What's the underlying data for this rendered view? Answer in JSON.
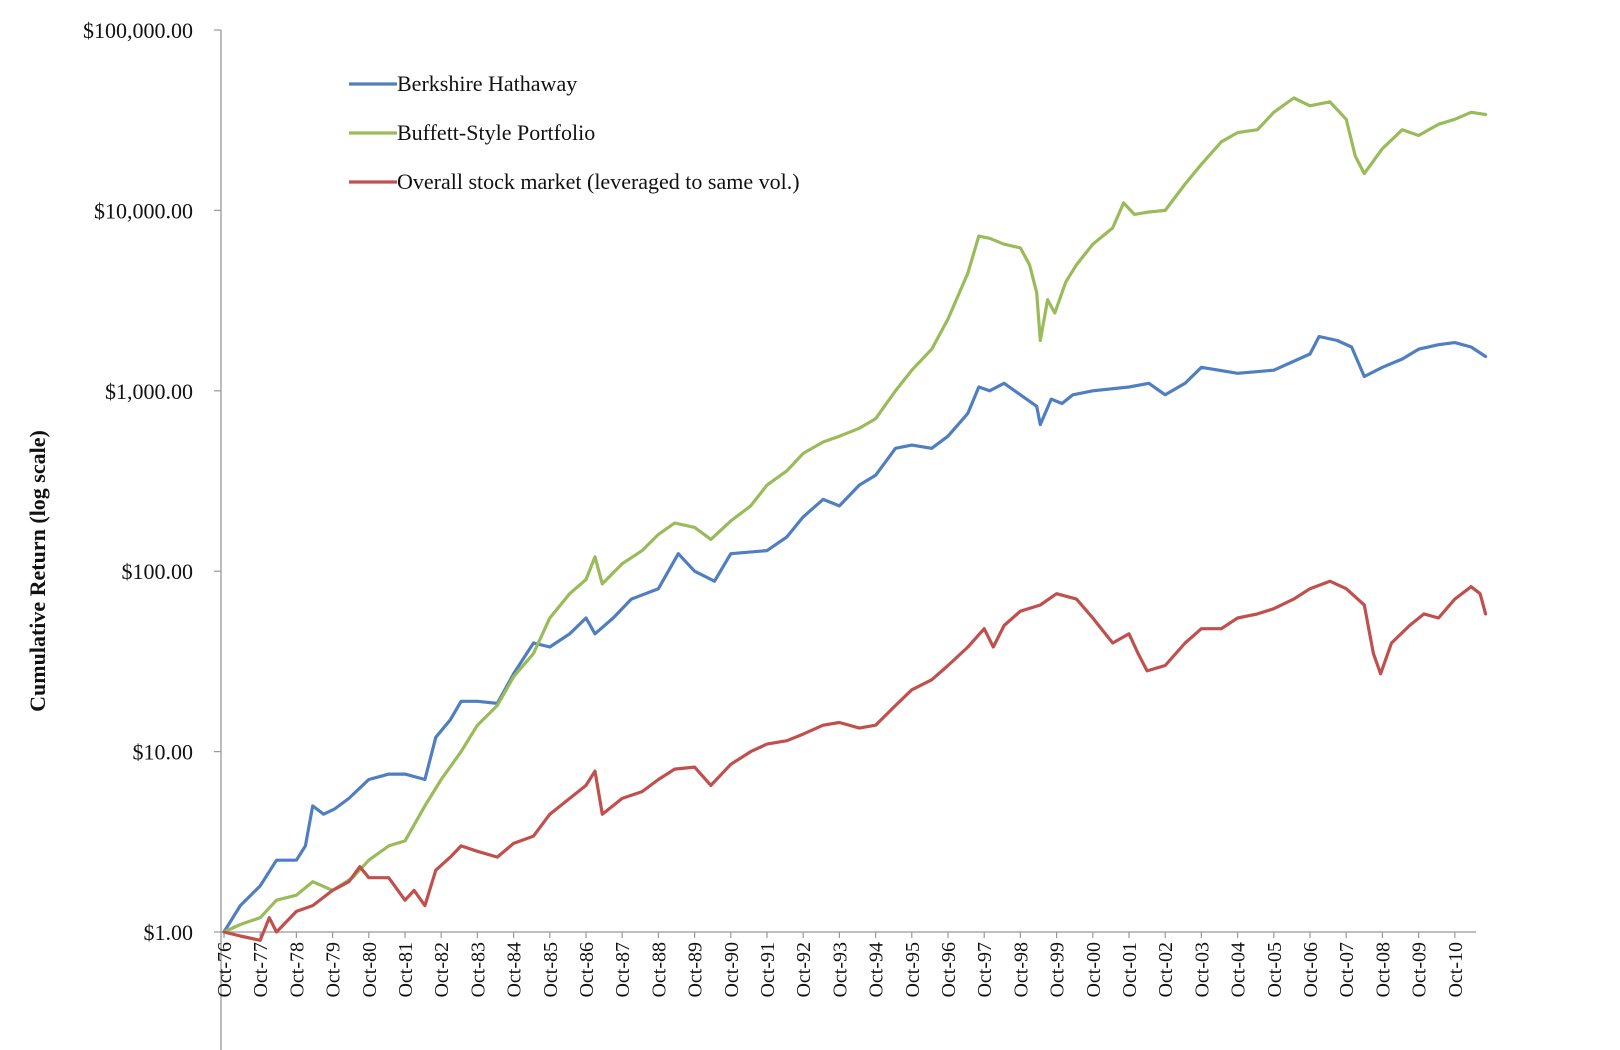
{
  "chart_data": {
    "type": "line",
    "ylabel": "Cumulative Return  (log scale)",
    "yscale": "log",
    "ylim": [
      1,
      100000
    ],
    "yticks": [
      {
        "value": 1,
        "label": "$1.00"
      },
      {
        "value": 10,
        "label": "$10.00"
      },
      {
        "value": 100,
        "label": "$100.00"
      },
      {
        "value": 1000,
        "label": "$1,000.00"
      },
      {
        "value": 10000,
        "label": "$10,000.00"
      },
      {
        "value": 100000,
        "label": "$100,000.00"
      }
    ],
    "xlim": [
      1976.75,
      2011.65
    ],
    "xticks": [
      "Oct-76",
      "Oct-77",
      "Oct-78",
      "Oct-79",
      "Oct-80",
      "Oct-81",
      "Oct-82",
      "Oct-83",
      "Oct-84",
      "Oct-85",
      "Oct-86",
      "Oct-87",
      "Oct-88",
      "Oct-89",
      "Oct-90",
      "Oct-91",
      "Oct-92",
      "Oct-93",
      "Oct-94",
      "Oct-95",
      "Oct-96",
      "Oct-97",
      "Oct-98",
      "Oct-99",
      "Oct-00",
      "Oct-01",
      "Oct-02",
      "Oct-03",
      "Oct-04",
      "Oct-05",
      "Oct-06",
      "Oct-07",
      "Oct-08",
      "Oct-09",
      "Oct-10"
    ],
    "legend_position": "top-left",
    "grid": false,
    "series": [
      {
        "name": "Berkshire Hathaway",
        "color": "#4f7fc0",
        "points": [
          [
            1976.75,
            1.0
          ],
          [
            1977.2,
            1.4
          ],
          [
            1977.75,
            1.8
          ],
          [
            1978.2,
            2.5
          ],
          [
            1978.75,
            2.5
          ],
          [
            1979.0,
            3.0
          ],
          [
            1979.2,
            5.0
          ],
          [
            1979.5,
            4.5
          ],
          [
            1979.8,
            4.8
          ],
          [
            1980.2,
            5.5
          ],
          [
            1980.75,
            7.0
          ],
          [
            1981.3,
            7.5
          ],
          [
            1981.75,
            7.5
          ],
          [
            1982.3,
            7.0
          ],
          [
            1982.6,
            12.0
          ],
          [
            1983.0,
            15.0
          ],
          [
            1983.3,
            19.0
          ],
          [
            1983.75,
            19.0
          ],
          [
            1984.3,
            18.5
          ],
          [
            1984.75,
            27.0
          ],
          [
            1985.3,
            40.0
          ],
          [
            1985.75,
            38.0
          ],
          [
            1986.3,
            45.0
          ],
          [
            1986.75,
            55.0
          ],
          [
            1987.0,
            45.0
          ],
          [
            1987.5,
            55.0
          ],
          [
            1988.0,
            70.0
          ],
          [
            1988.75,
            80.0
          ],
          [
            1989.3,
            125.0
          ],
          [
            1989.75,
            100.0
          ],
          [
            1990.3,
            88.0
          ],
          [
            1990.75,
            125.0
          ],
          [
            1991.75,
            130.0
          ],
          [
            1992.3,
            155.0
          ],
          [
            1992.75,
            200.0
          ],
          [
            1993.3,
            250.0
          ],
          [
            1993.75,
            230.0
          ],
          [
            1994.3,
            300.0
          ],
          [
            1994.75,
            340.0
          ],
          [
            1995.3,
            480.0
          ],
          [
            1995.75,
            500.0
          ],
          [
            1996.3,
            480.0
          ],
          [
            1996.75,
            560.0
          ],
          [
            1997.3,
            750.0
          ],
          [
            1997.6,
            1050.0
          ],
          [
            1997.9,
            1000.0
          ],
          [
            1998.3,
            1100.0
          ],
          [
            1998.75,
            950.0
          ],
          [
            1999.2,
            820.0
          ],
          [
            1999.3,
            650.0
          ],
          [
            1999.6,
            900.0
          ],
          [
            1999.9,
            850.0
          ],
          [
            2000.2,
            950.0
          ],
          [
            2000.75,
            1000.0
          ],
          [
            2001.75,
            1050.0
          ],
          [
            2002.3,
            1100.0
          ],
          [
            2002.75,
            950.0
          ],
          [
            2003.3,
            1100.0
          ],
          [
            2003.75,
            1350.0
          ],
          [
            2004.75,
            1250.0
          ],
          [
            2005.75,
            1300.0
          ],
          [
            2006.75,
            1600.0
          ],
          [
            2007.0,
            2000.0
          ],
          [
            2007.5,
            1900.0
          ],
          [
            2007.9,
            1750.0
          ],
          [
            2008.25,
            1200.0
          ],
          [
            2008.75,
            1350.0
          ],
          [
            2009.3,
            1500.0
          ],
          [
            2009.75,
            1700.0
          ],
          [
            2010.3,
            1800.0
          ],
          [
            2010.75,
            1850.0
          ],
          [
            2011.2,
            1750.0
          ],
          [
            2011.6,
            1550.0
          ]
        ]
      },
      {
        "name": "Buffett-Style Portfolio",
        "color": "#9abb59",
        "points": [
          [
            1976.75,
            1.0
          ],
          [
            1977.2,
            1.1
          ],
          [
            1977.75,
            1.2
          ],
          [
            1978.2,
            1.5
          ],
          [
            1978.75,
            1.6
          ],
          [
            1979.2,
            1.9
          ],
          [
            1979.75,
            1.7
          ],
          [
            1980.3,
            2.0
          ],
          [
            1980.75,
            2.5
          ],
          [
            1981.3,
            3.0
          ],
          [
            1981.75,
            3.2
          ],
          [
            1982.3,
            5.0
          ],
          [
            1982.75,
            7.0
          ],
          [
            1983.3,
            10.0
          ],
          [
            1983.75,
            14.0
          ],
          [
            1984.3,
            18.0
          ],
          [
            1984.75,
            26.0
          ],
          [
            1985.3,
            35.0
          ],
          [
            1985.75,
            55.0
          ],
          [
            1986.3,
            75.0
          ],
          [
            1986.75,
            90.0
          ],
          [
            1987.0,
            120.0
          ],
          [
            1987.2,
            85.0
          ],
          [
            1987.75,
            110.0
          ],
          [
            1988.3,
            130.0
          ],
          [
            1988.75,
            160.0
          ],
          [
            1989.2,
            185.0
          ],
          [
            1989.75,
            175.0
          ],
          [
            1990.2,
            150.0
          ],
          [
            1990.75,
            190.0
          ],
          [
            1991.3,
            230.0
          ],
          [
            1991.75,
            300.0
          ],
          [
            1992.3,
            360.0
          ],
          [
            1992.75,
            450.0
          ],
          [
            1993.3,
            520.0
          ],
          [
            1993.75,
            560.0
          ],
          [
            1994.3,
            620.0
          ],
          [
            1994.75,
            700.0
          ],
          [
            1995.3,
            1000.0
          ],
          [
            1995.75,
            1300.0
          ],
          [
            1996.3,
            1700.0
          ],
          [
            1996.75,
            2500.0
          ],
          [
            1997.3,
            4500.0
          ],
          [
            1997.6,
            7200.0
          ],
          [
            1997.9,
            7000.0
          ],
          [
            1998.3,
            6500.0
          ],
          [
            1998.75,
            6200.0
          ],
          [
            1999.0,
            5000.0
          ],
          [
            1999.2,
            3500.0
          ],
          [
            1999.3,
            1900.0
          ],
          [
            1999.5,
            3200.0
          ],
          [
            1999.7,
            2700.0
          ],
          [
            2000.0,
            4000.0
          ],
          [
            2000.3,
            5000.0
          ],
          [
            2000.75,
            6500.0
          ],
          [
            2001.3,
            8000.0
          ],
          [
            2001.6,
            11000.0
          ],
          [
            2001.9,
            9500.0
          ],
          [
            2002.3,
            9800.0
          ],
          [
            2002.75,
            10000.0
          ],
          [
            2003.3,
            14000.0
          ],
          [
            2003.75,
            18000.0
          ],
          [
            2004.3,
            24000.0
          ],
          [
            2004.75,
            27000.0
          ],
          [
            2005.3,
            28000.0
          ],
          [
            2005.75,
            35000.0
          ],
          [
            2006.3,
            42000.0
          ],
          [
            2006.75,
            38000.0
          ],
          [
            2007.3,
            40000.0
          ],
          [
            2007.75,
            32000.0
          ],
          [
            2008.0,
            20000.0
          ],
          [
            2008.25,
            16000.0
          ],
          [
            2008.75,
            22000.0
          ],
          [
            2009.3,
            28000.0
          ],
          [
            2009.75,
            26000.0
          ],
          [
            2010.3,
            30000.0
          ],
          [
            2010.75,
            32000.0
          ],
          [
            2011.2,
            35000.0
          ],
          [
            2011.6,
            34000.0
          ]
        ]
      },
      {
        "name": "Overall stock market (leveraged to same vol.)",
        "color": "#c0504d",
        "points": [
          [
            1976.75,
            1.0
          ],
          [
            1977.2,
            0.95
          ],
          [
            1977.75,
            0.9
          ],
          [
            1978.0,
            1.2
          ],
          [
            1978.2,
            1.0
          ],
          [
            1978.75,
            1.3
          ],
          [
            1979.2,
            1.4
          ],
          [
            1979.75,
            1.7
          ],
          [
            1980.2,
            1.9
          ],
          [
            1980.5,
            2.3
          ],
          [
            1980.75,
            2.0
          ],
          [
            1981.3,
            2.0
          ],
          [
            1981.75,
            1.5
          ],
          [
            1982.0,
            1.7
          ],
          [
            1982.3,
            1.4
          ],
          [
            1982.6,
            2.2
          ],
          [
            1983.0,
            2.6
          ],
          [
            1983.3,
            3.0
          ],
          [
            1983.75,
            2.8
          ],
          [
            1984.3,
            2.6
          ],
          [
            1984.75,
            3.1
          ],
          [
            1985.3,
            3.4
          ],
          [
            1985.75,
            4.5
          ],
          [
            1986.3,
            5.5
          ],
          [
            1986.75,
            6.5
          ],
          [
            1987.0,
            7.8
          ],
          [
            1987.2,
            4.5
          ],
          [
            1987.75,
            5.5
          ],
          [
            1988.3,
            6.0
          ],
          [
            1988.75,
            7.0
          ],
          [
            1989.2,
            8.0
          ],
          [
            1989.75,
            8.2
          ],
          [
            1990.2,
            6.5
          ],
          [
            1990.75,
            8.5
          ],
          [
            1991.3,
            10.0
          ],
          [
            1991.75,
            11.0
          ],
          [
            1992.3,
            11.5
          ],
          [
            1992.75,
            12.5
          ],
          [
            1993.3,
            14.0
          ],
          [
            1993.75,
            14.5
          ],
          [
            1994.3,
            13.5
          ],
          [
            1994.75,
            14.0
          ],
          [
            1995.3,
            18.0
          ],
          [
            1995.75,
            22.0
          ],
          [
            1996.3,
            25.0
          ],
          [
            1996.75,
            30.0
          ],
          [
            1997.3,
            38.0
          ],
          [
            1997.75,
            48.0
          ],
          [
            1998.0,
            38.0
          ],
          [
            1998.3,
            50.0
          ],
          [
            1998.75,
            60.0
          ],
          [
            1999.3,
            65.0
          ],
          [
            1999.75,
            75.0
          ],
          [
            2000.3,
            70.0
          ],
          [
            2000.75,
            55.0
          ],
          [
            2001.3,
            40.0
          ],
          [
            2001.75,
            45.0
          ],
          [
            2002.0,
            35.0
          ],
          [
            2002.25,
            28.0
          ],
          [
            2002.75,
            30.0
          ],
          [
            2003.3,
            40.0
          ],
          [
            2003.75,
            48.0
          ],
          [
            2004.3,
            48.0
          ],
          [
            2004.75,
            55.0
          ],
          [
            2005.3,
            58.0
          ],
          [
            2005.75,
            62.0
          ],
          [
            2006.3,
            70.0
          ],
          [
            2006.75,
            80.0
          ],
          [
            2007.3,
            88.0
          ],
          [
            2007.75,
            80.0
          ],
          [
            2008.25,
            65.0
          ],
          [
            2008.5,
            35.0
          ],
          [
            2008.7,
            27.0
          ],
          [
            2009.0,
            40.0
          ],
          [
            2009.5,
            50.0
          ],
          [
            2009.9,
            58.0
          ],
          [
            2010.3,
            55.0
          ],
          [
            2010.75,
            70.0
          ],
          [
            2011.2,
            82.0
          ],
          [
            2011.45,
            75.0
          ],
          [
            2011.6,
            58.0
          ]
        ]
      }
    ]
  }
}
